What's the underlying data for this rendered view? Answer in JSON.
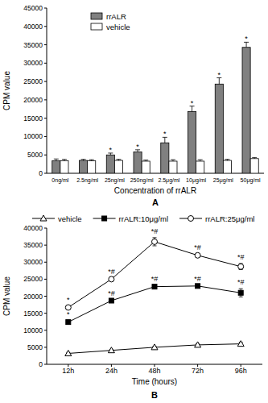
{
  "chart_data": [
    {
      "type": "bar",
      "label": "A",
      "y_label": "CPM value",
      "x_label": "Concentration of rrALR",
      "categories": [
        "0ng/ml",
        "2.5ng/ml",
        "25ng/ml",
        "250ng/ml",
        "2.5μg/ml",
        "10μg/ml",
        "25μg/ml",
        "50μg/ml"
      ],
      "series": [
        {
          "name": "rrALR",
          "color": "#808080",
          "values": [
            3400,
            3500,
            5000,
            5800,
            8300,
            16800,
            24300,
            34300
          ],
          "errors": [
            500,
            300,
            500,
            600,
            1500,
            1500,
            1700,
            1400
          ],
          "significance": [
            null,
            null,
            "*",
            "*",
            "*",
            "*",
            "*",
            "*"
          ]
        },
        {
          "name": "vehicle",
          "color": "#ffffff",
          "values": [
            3400,
            3400,
            3500,
            3300,
            3300,
            3300,
            3500,
            4000
          ],
          "errors": [
            400,
            300,
            300,
            300,
            400,
            400,
            300,
            300
          ]
        }
      ],
      "ylim": [
        0,
        45000
      ],
      "yticks": [
        0,
        5000,
        10000,
        15000,
        20000,
        25000,
        30000,
        35000,
        40000,
        45000
      ],
      "grid": false,
      "legend": "upper left"
    },
    {
      "type": "line",
      "label": "B",
      "y_label": "CPM value",
      "x_label": "Time (hours)",
      "categories": [
        "12h",
        "24h",
        "48h",
        "72h",
        "96h"
      ],
      "series": [
        {
          "name": "vehicle",
          "color": "#000000",
          "marker": "triangle-open",
          "values": [
            3200,
            4100,
            5000,
            5700,
            6000
          ],
          "errors": [
            300,
            300,
            300,
            300,
            500
          ]
        },
        {
          "name": "rrALR:10μg/ml",
          "color": "#000000",
          "marker": "square",
          "values": [
            12400,
            18700,
            22800,
            23000,
            21000
          ],
          "errors": [
            300,
            300,
            400,
            300,
            1200
          ],
          "significance": [
            "*",
            "*#",
            "*#",
            "*#",
            "*#"
          ]
        },
        {
          "name": "rrALR:25μg/ml",
          "color": "#000000",
          "marker": "circle-open",
          "values": [
            16700,
            25000,
            36000,
            32000,
            28700
          ],
          "errors": [
            400,
            300,
            1200,
            400,
            900
          ],
          "significance": [
            "*",
            "*#",
            "*#",
            "*#",
            "*#"
          ]
        }
      ],
      "ylim": [
        0,
        40000
      ],
      "yticks": [
        0,
        5000,
        10000,
        15000,
        20000,
        25000,
        30000,
        35000,
        40000
      ],
      "grid": false,
      "legend": "top"
    }
  ]
}
